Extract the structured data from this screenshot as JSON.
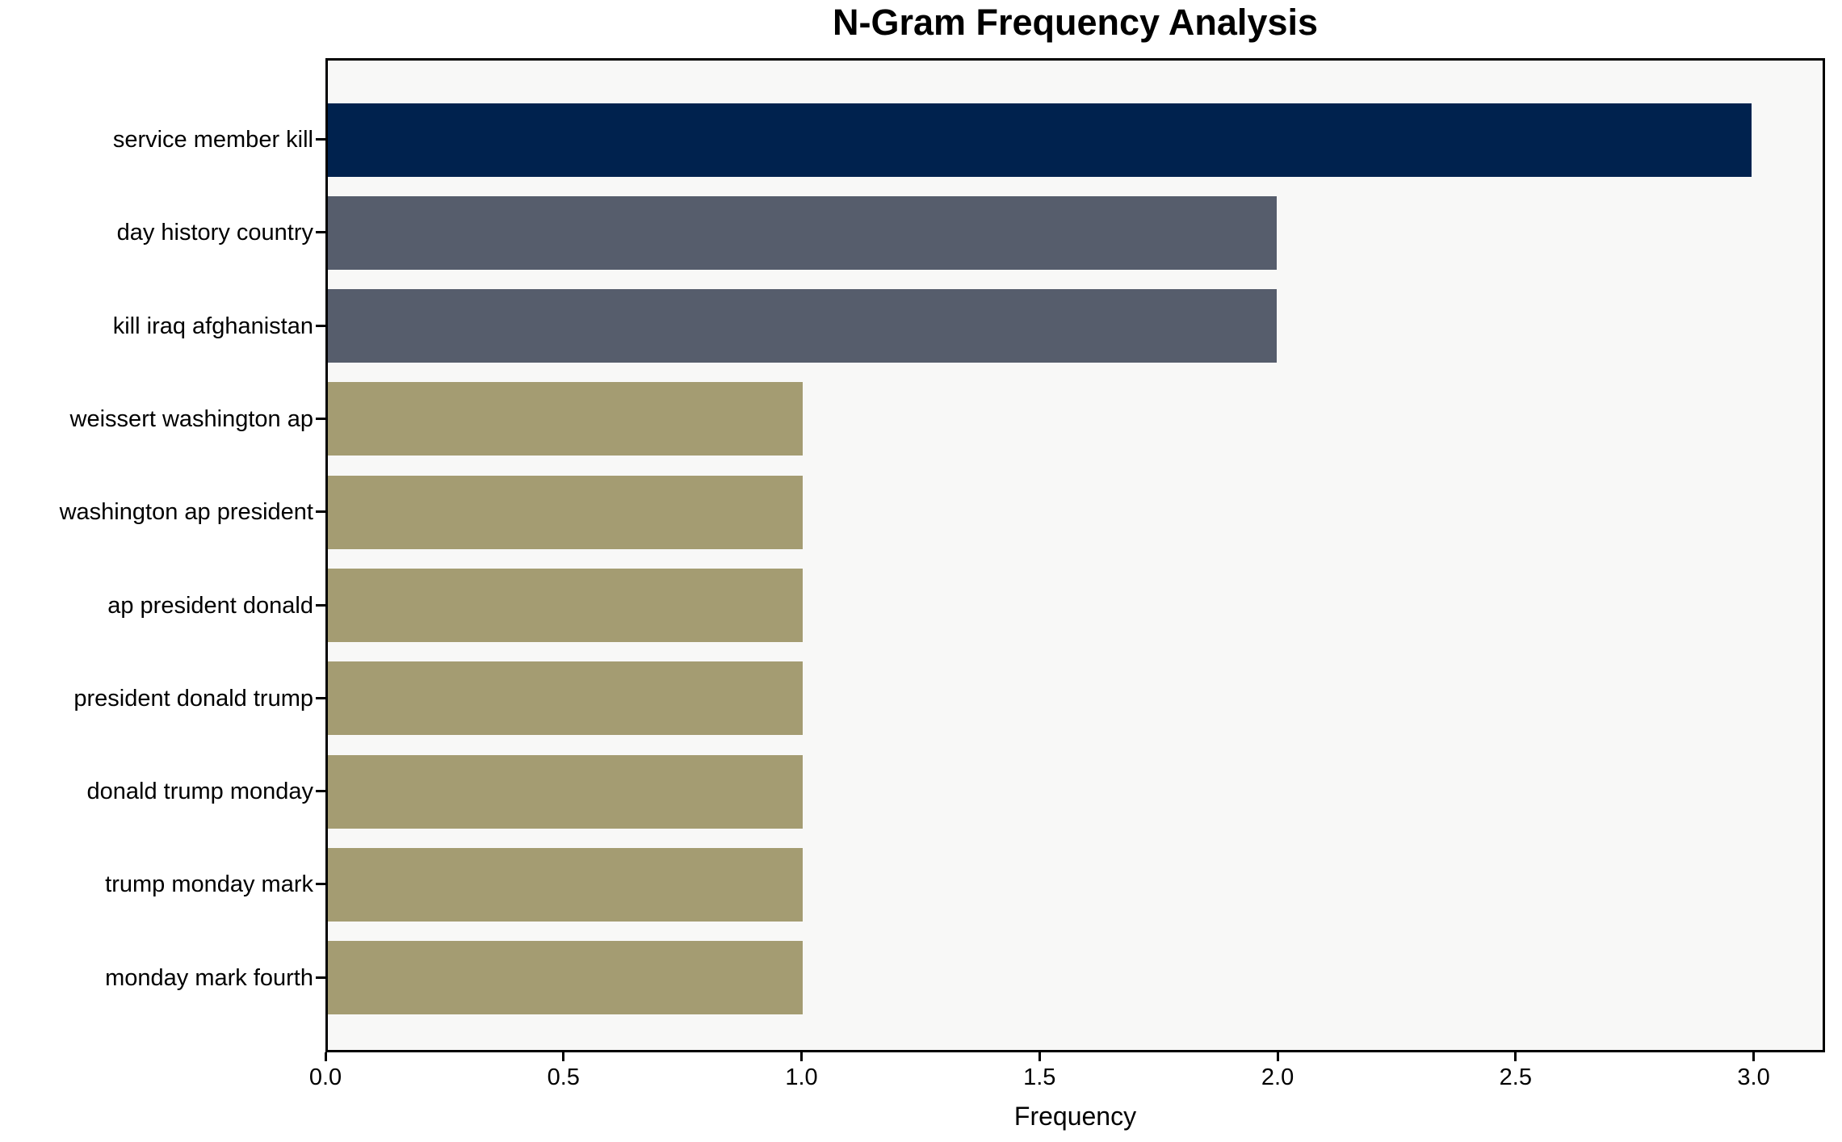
{
  "chart_data": {
    "type": "bar",
    "orientation": "horizontal",
    "title": "N-Gram Frequency Analysis",
    "xlabel": "Frequency",
    "ylabel": "",
    "categories": [
      "service member kill",
      "day history country",
      "kill iraq afghanistan",
      "weissert washington ap",
      "washington ap president",
      "ap president donald",
      "president donald trump",
      "donald trump monday",
      "trump monday mark",
      "monday mark fourth"
    ],
    "values": [
      3,
      2,
      2,
      1,
      1,
      1,
      1,
      1,
      1,
      1
    ],
    "xlim": [
      0,
      3.15
    ],
    "xticks": [
      0.0,
      0.5,
      1.0,
      1.5,
      2.0,
      2.5,
      3.0
    ],
    "xtick_labels": [
      "0.0",
      "0.5",
      "1.0",
      "1.5",
      "2.0",
      "2.5",
      "3.0"
    ],
    "grid": false,
    "legend": "none",
    "bar_colors": [
      "#00224E",
      "#565D6C",
      "#565D6C",
      "#A49C72",
      "#A49C72",
      "#A49C72",
      "#A49C72",
      "#A49C72",
      "#A49C72",
      "#A49C72"
    ],
    "colors": {
      "figure_background": "#FFFFFF",
      "plot_background": "#F8F8F7",
      "spine": "#000000",
      "text": "#000000",
      "navy": "#00224E",
      "slate": "#565D6C",
      "khaki": "#A49C72"
    }
  }
}
